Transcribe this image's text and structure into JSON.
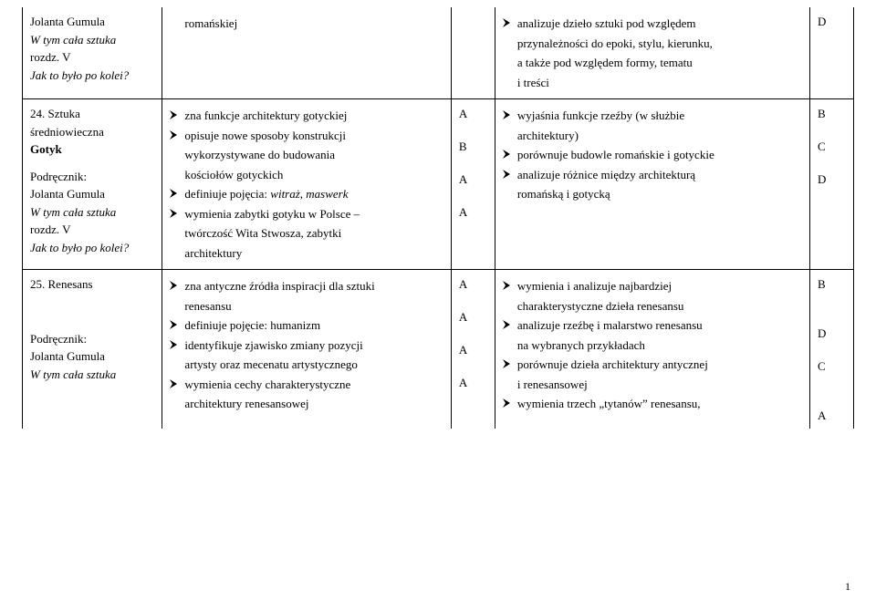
{
  "rows": [
    {
      "topic_lines": [
        "Jolanta Gumula",
        "<i>W tym cała sztuka</i>",
        "rozdz. V",
        "<i>Jak to było po kolei?</i>"
      ],
      "content_bullets": [
        "romańskiej"
      ],
      "content_indents": [],
      "grades_left": [],
      "outcome_bullets": [
        "analizuje dzieło sztuki pod względem"
      ],
      "outcome_indents": [
        "przynależności do epoki, stylu, kierunku,",
        "a także pod względem formy, tematu",
        "i treści"
      ],
      "grades_right": [
        "D"
      ],
      "open_top": true,
      "open_bottom": false
    },
    {
      "topic_lines": [
        "24. Sztuka",
        "średniowieczna",
        "<b>Gotyk</b>",
        "",
        "Podręcznik:",
        "Jolanta Gumula",
        "<i>W tym cała sztuka</i>",
        "rozdz. V",
        "<i>Jak to było po kolei?</i>"
      ],
      "content_bullets": [
        "zna funkcje architektury gotyckiej",
        "opisuje nowe sposoby konstrukcji wykorzystywane do budowania kościołów gotyckich",
        "definiuje pojęcia: <i>witraż, maswerk</i>",
        "wymienia zabytki gotyku w Polsce – twórczość Wita Stwosza, zabytki architektury"
      ],
      "grades_left": [
        "A",
        "",
        "B",
        "",
        "A",
        "",
        "A"
      ],
      "outcome_bullets": [
        "wyjaśnia funkcje rzeźby (w służbie architektury)",
        "porównuje budowle romańskie i gotyckie",
        "analizuje różnice między architekturą romańską i gotycką"
      ],
      "grades_right": [
        "B",
        "",
        "C",
        "",
        "D"
      ],
      "open_top": false,
      "open_bottom": false
    },
    {
      "topic_lines": [
        "25. Renesans",
        "",
        "",
        "",
        "",
        "Podręcznik:",
        "Jolanta Gumula",
        "<i>W tym cała sztuka</i>"
      ],
      "content_bullets": [
        "zna antyczne źródła inspiracji dla sztuki renesansu",
        "definiuje pojęcie: humanizm",
        "identyfikuje zjawisko zmiany pozycji artysty oraz mecenatu artystycznego",
        "wymienia cechy charakterystyczne architektury renesansowej"
      ],
      "grades_left": [
        "A",
        "",
        "A",
        "",
        "A",
        "",
        "A"
      ],
      "outcome_bullets": [
        "wymienia i analizuje najbardziej charakterystyczne dzieła renesansu",
        "analizuje rzeźbę i malarstwo renesansu na wybranych przykładach",
        "porównuje dzieła architektury antycznej i renesansowej",
        "wymienia trzech „tytanów” renesansu,"
      ],
      "grades_right": [
        "B",
        "",
        "",
        "D",
        "",
        "C",
        "",
        "",
        "A"
      ],
      "open_top": false,
      "open_bottom": true
    }
  ],
  "page_number": "1",
  "colors": {
    "text": "#000000",
    "background": "#ffffff",
    "border": "#000000",
    "arrow_fill": "#000000"
  }
}
